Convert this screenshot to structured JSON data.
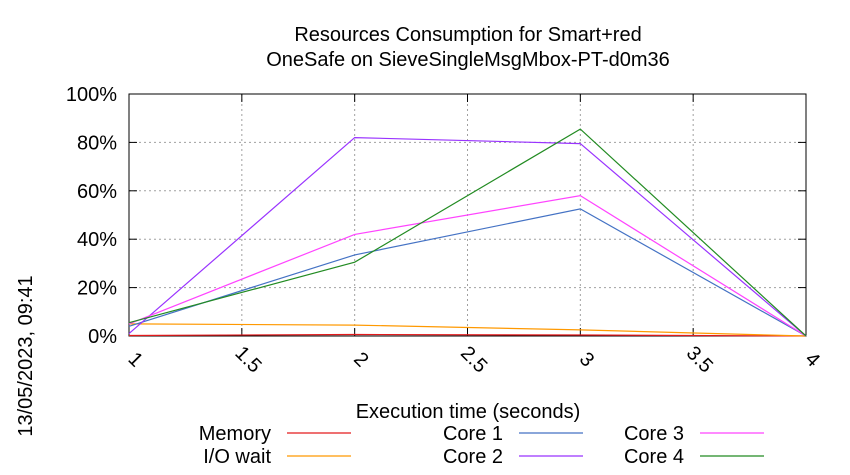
{
  "chart_data": {
    "type": "line",
    "title": [
      "Resources Consumption for Smart+red",
      "OneSafe on SieveSingleMsgMbox-PT-d0m36"
    ],
    "xlabel": "Execution time (seconds)",
    "ylabel": "",
    "side_label": "13/05/2023, 09:41",
    "xlim": [
      1,
      4
    ],
    "ylim": [
      0,
      100
    ],
    "x_ticks": [
      1,
      1.5,
      2,
      2.5,
      3,
      3.5,
      4
    ],
    "x_tick_labels": [
      "1",
      "1.5",
      "2",
      "2.5",
      "3",
      "3.5",
      "4"
    ],
    "y_ticks": [
      0,
      20,
      40,
      60,
      80,
      100
    ],
    "y_tick_labels": [
      "0%",
      "20%",
      "40%",
      "60%",
      "80%",
      "100%"
    ],
    "grid": true,
    "legend_position": "bottom",
    "x": [
      1,
      2,
      3,
      4
    ],
    "series": [
      {
        "name": "Memory",
        "color": "#e41a1c",
        "values": [
          0.2,
          0.6,
          0.4,
          0
        ]
      },
      {
        "name": "I/O wait",
        "color": "#ff9900",
        "values": [
          5,
          4.5,
          2.5,
          0
        ]
      },
      {
        "name": "Core 1",
        "color": "#4472c4",
        "values": [
          4,
          33.5,
          52.5,
          0
        ]
      },
      {
        "name": "Core 2",
        "color": "#9933ff",
        "values": [
          1,
          82,
          79.5,
          0
        ]
      },
      {
        "name": "Core 3",
        "color": "#ff44ff",
        "values": [
          5,
          42,
          58,
          0
        ]
      },
      {
        "name": "Core 4",
        "color": "#228b22",
        "values": [
          5.5,
          30.5,
          85.5,
          0
        ]
      }
    ]
  }
}
